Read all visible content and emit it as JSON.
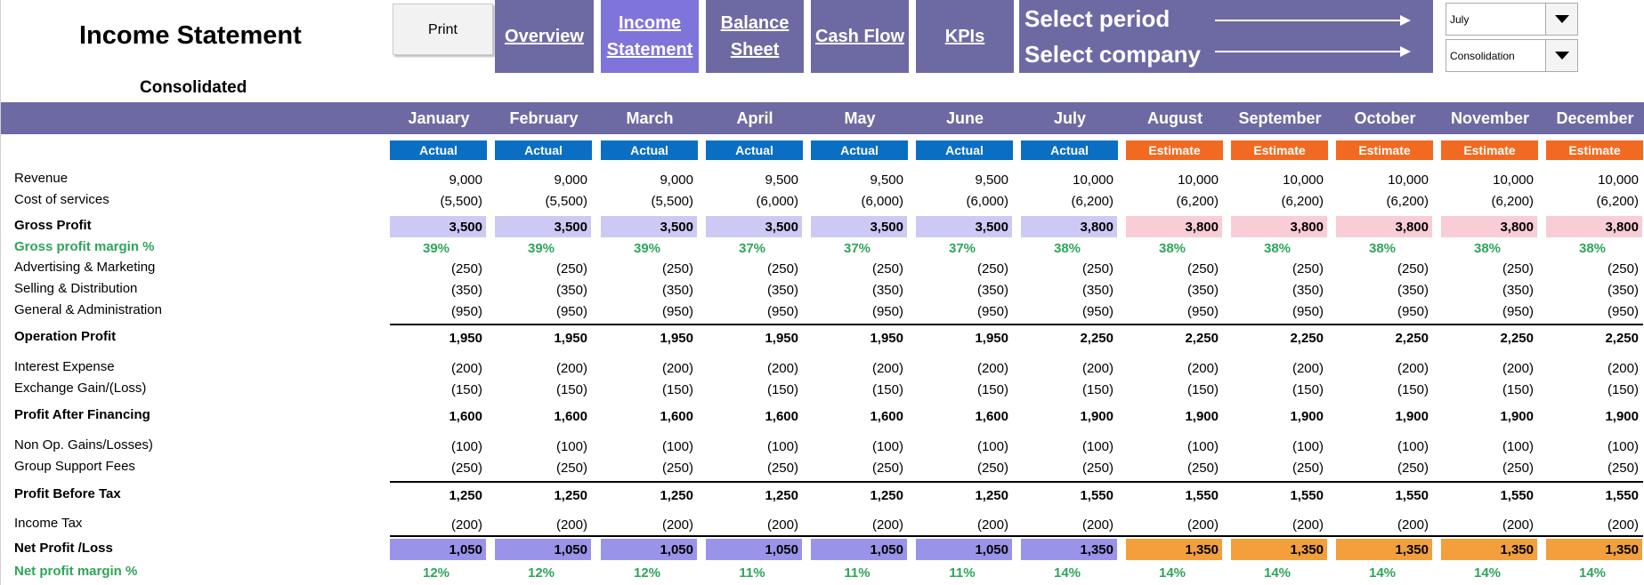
{
  "header": {
    "title": "Income Statement",
    "subtitle": "Consolidated",
    "print_label": "Print",
    "nav": [
      {
        "label": "Overview"
      },
      {
        "label": "Income\nStatement"
      },
      {
        "label": "Balance\nSheet"
      },
      {
        "label": "Cash Flow"
      },
      {
        "label": "KPIs"
      }
    ],
    "select_period_label": "Select period",
    "select_company_label": "Select company",
    "period_value": "July",
    "company_value": "Consolidation"
  },
  "months": [
    "January",
    "February",
    "March",
    "April",
    "May",
    "June",
    "July",
    "August",
    "September",
    "October",
    "November",
    "December"
  ],
  "types": [
    "Actual",
    "Actual",
    "Actual",
    "Actual",
    "Actual",
    "Actual",
    "Actual",
    "Estimate",
    "Estimate",
    "Estimate",
    "Estimate",
    "Estimate"
  ],
  "rows": [
    {
      "label": "Revenue",
      "values": [
        "9,000",
        "9,000",
        "9,000",
        "9,500",
        "9,500",
        "9,500",
        "10,000",
        "10,000",
        "10,000",
        "10,000",
        "10,000",
        "10,000"
      ]
    },
    {
      "label": "Cost of services",
      "values": [
        "(5,500)",
        "(5,500)",
        "(5,500)",
        "(6,000)",
        "(6,000)",
        "(6,000)",
        "(6,200)",
        "(6,200)",
        "(6,200)",
        "(6,200)",
        "(6,200)",
        "(6,200)"
      ]
    },
    {
      "label": "Gross Profit",
      "values": [
        "3,500",
        "3,500",
        "3,500",
        "3,500",
        "3,500",
        "3,500",
        "3,800",
        "3,800",
        "3,800",
        "3,800",
        "3,800",
        "3,800"
      ]
    },
    {
      "label": "Gross profit margin %",
      "values": [
        "39%",
        "39%",
        "39%",
        "37%",
        "37%",
        "37%",
        "38%",
        "38%",
        "38%",
        "38%",
        "38%",
        "38%"
      ]
    },
    {
      "label": "Advertising & Marketing",
      "values": [
        "(250)",
        "(250)",
        "(250)",
        "(250)",
        "(250)",
        "(250)",
        "(250)",
        "(250)",
        "(250)",
        "(250)",
        "(250)",
        "(250)"
      ]
    },
    {
      "label": "Selling & Distribution",
      "values": [
        "(350)",
        "(350)",
        "(350)",
        "(350)",
        "(350)",
        "(350)",
        "(350)",
        "(350)",
        "(350)",
        "(350)",
        "(350)",
        "(350)"
      ]
    },
    {
      "label": "General & Administration",
      "values": [
        "(950)",
        "(950)",
        "(950)",
        "(950)",
        "(950)",
        "(950)",
        "(950)",
        "(950)",
        "(950)",
        "(950)",
        "(950)",
        "(950)"
      ]
    },
    {
      "label": "Operation Profit",
      "values": [
        "1,950",
        "1,950",
        "1,950",
        "1,950",
        "1,950",
        "1,950",
        "2,250",
        "2,250",
        "2,250",
        "2,250",
        "2,250",
        "2,250"
      ]
    },
    {
      "label": "Interest Expense",
      "values": [
        "(200)",
        "(200)",
        "(200)",
        "(200)",
        "(200)",
        "(200)",
        "(200)",
        "(200)",
        "(200)",
        "(200)",
        "(200)",
        "(200)"
      ]
    },
    {
      "label": "Exchange Gain/(Loss)",
      "values": [
        "(150)",
        "(150)",
        "(150)",
        "(150)",
        "(150)",
        "(150)",
        "(150)",
        "(150)",
        "(150)",
        "(150)",
        "(150)",
        "(150)"
      ]
    },
    {
      "label": "Profit After Financing",
      "values": [
        "1,600",
        "1,600",
        "1,600",
        "1,600",
        "1,600",
        "1,600",
        "1,900",
        "1,900",
        "1,900",
        "1,900",
        "1,900",
        "1,900"
      ]
    },
    {
      "label": "Non Op. Gains/Losses)",
      "values": [
        "(100)",
        "(100)",
        "(100)",
        "(100)",
        "(100)",
        "(100)",
        "(100)",
        "(100)",
        "(100)",
        "(100)",
        "(100)",
        "(100)"
      ]
    },
    {
      "label": "Group Support Fees",
      "values": [
        "(250)",
        "(250)",
        "(250)",
        "(250)",
        "(250)",
        "(250)",
        "(250)",
        "(250)",
        "(250)",
        "(250)",
        "(250)",
        "(250)"
      ]
    },
    {
      "label": "Profit Before Tax",
      "values": [
        "1,250",
        "1,250",
        "1,250",
        "1,250",
        "1,250",
        "1,250",
        "1,550",
        "1,550",
        "1,550",
        "1,550",
        "1,550",
        "1,550"
      ]
    },
    {
      "label": "Income Tax",
      "values": [
        "(200)",
        "(200)",
        "(200)",
        "(200)",
        "(200)",
        "(200)",
        "(200)",
        "(200)",
        "(200)",
        "(200)",
        "(200)",
        "(200)"
      ]
    },
    {
      "label": "Net Profit /Loss",
      "values": [
        "1,050",
        "1,050",
        "1,050",
        "1,050",
        "1,050",
        "1,050",
        "1,350",
        "1,350",
        "1,350",
        "1,350",
        "1,350",
        "1,350"
      ]
    },
    {
      "label": "Net profit margin %",
      "values": [
        "12%",
        "12%",
        "12%",
        "11%",
        "11%",
        "11%",
        "14%",
        "14%",
        "14%",
        "14%",
        "14%",
        "14%"
      ]
    }
  ],
  "colors": {
    "nav_bg": "#6d6aa3",
    "nav_active_bg": "#7f74d9",
    "actual_badge": "#0a6fc2",
    "estimate_badge": "#f26a21",
    "gross_actual_hl": "#cccaf5",
    "gross_estimate_hl": "#f8cdd6",
    "net_actual_hl": "#9a93ea",
    "net_estimate_hl": "#f29f3c",
    "margin_text": "#2ea55a"
  }
}
